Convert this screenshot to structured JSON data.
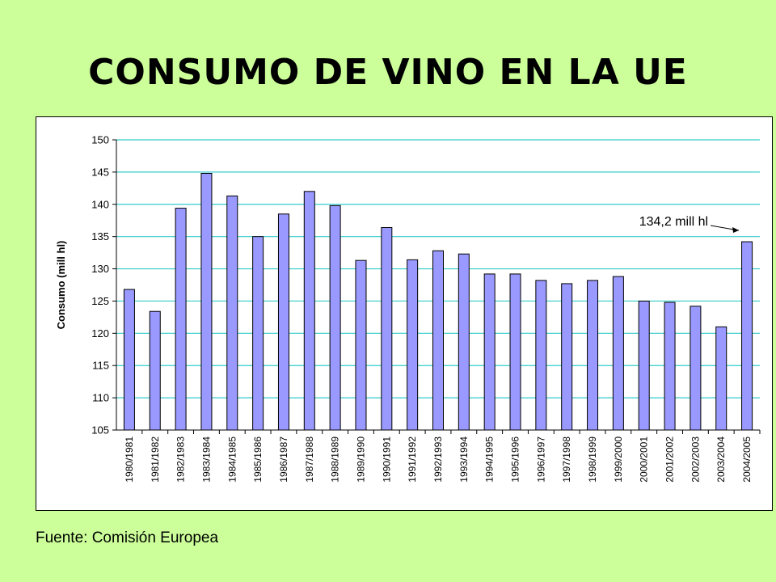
{
  "page": {
    "title": "CONSUMO DE VINO EN LA UE",
    "source": "Fuente: Comisión Europea"
  },
  "chart_data": {
    "type": "bar",
    "title": "",
    "xlabel": "",
    "ylabel": "Consumo (mill hl)",
    "ylim": [
      105,
      150
    ],
    "yticks": [
      105,
      110,
      115,
      120,
      125,
      130,
      135,
      140,
      145,
      150
    ],
    "grid": true,
    "legend": "none",
    "categories": [
      "1980/1981",
      "1981/1982",
      "1982/1983",
      "1983/1984",
      "1984/1985",
      "1985/1986",
      "1986/1987",
      "1987/1988",
      "1988/1989",
      "1989/1990",
      "1990/1991",
      "1991/1992",
      "1992/1993",
      "1993/1994",
      "1994/1995",
      "1995/1996",
      "1996/1997",
      "1997/1998",
      "1998/1999",
      "1999/2000",
      "2000/2001",
      "2001/2002",
      "2002/2003",
      "2003/2004",
      "2004/2005"
    ],
    "values": [
      126.8,
      123.4,
      139.4,
      144.8,
      141.3,
      135.0,
      138.5,
      142.0,
      139.8,
      131.3,
      136.4,
      131.4,
      132.8,
      132.3,
      129.2,
      129.2,
      128.2,
      127.7,
      128.2,
      128.8,
      125.0,
      124.8,
      124.2,
      121.0,
      134.2
    ],
    "annotation": {
      "text": "134,2 mill hl",
      "category": "2004/2005"
    },
    "colors": {
      "bar": "#9999ff",
      "bar_stroke": "#000000",
      "grid": "#33cccc"
    }
  }
}
